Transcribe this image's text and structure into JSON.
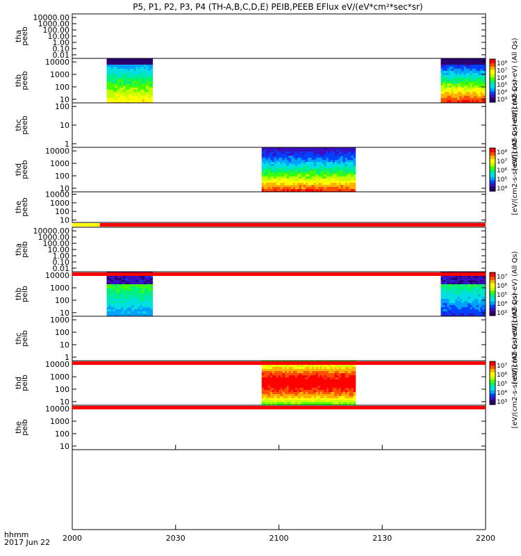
{
  "chart_data": {
    "type": "heatmap",
    "title": "P5, P1, P2, P3, P4 (TH-A,B,C,D,E) PEIB,PEEB EFlux eV/(eV*cm²*sec*sr)",
    "x_ticks": [
      "2000",
      "2030",
      "2100",
      "2130",
      "2200"
    ],
    "x_range": [
      "20:00",
      "22:00"
    ],
    "x_label": "hhmm",
    "date_label": "2017 Jun 22",
    "panels": [
      {
        "id": "tha-peeb",
        "ylabel": [
          "tha",
          "peeb"
        ],
        "yticks": [
          "10000.00",
          "1000.00",
          "100.00",
          "10.00",
          "1.00",
          "0.10",
          "0.01"
        ],
        "data": false
      },
      {
        "id": "thb-peeb",
        "ylabel": [
          "thb",
          "peeb"
        ],
        "yticks": [
          "10000",
          "1000",
          "100",
          "10"
        ],
        "data": true,
        "intervals": [
          {
            "start": "20:10",
            "end": "20:23"
          },
          {
            "start": "21:47",
            "end": "22:00"
          }
        ],
        "colorbar": {
          "ticks": [
            "10⁸",
            "10⁷",
            "10⁶",
            "10⁵",
            "10⁴",
            "10³"
          ],
          "label": "eV/(cm2-s-sr-eV) (All Qs)"
        }
      },
      {
        "id": "thc-peeb",
        "ylabel": [
          "thc",
          "peeb"
        ],
        "yticks": [
          "100",
          "10",
          "1"
        ],
        "data": false,
        "colorbar_label": "[eV/(cm2-s-sr-eV)] (All Qs)"
      },
      {
        "id": "thd-peeb",
        "ylabel": [
          "thd",
          "peeb"
        ],
        "yticks": [
          "10000",
          "1000",
          "100",
          "10"
        ],
        "data": true,
        "intervals": [
          {
            "start": "20:55",
            "end": "21:22"
          }
        ],
        "colorbar": {
          "ticks": [
            "10⁸",
            "10⁷",
            "10⁶",
            "10⁵",
            "10⁴"
          ],
          "label": "[eV/(cm2-s-sr-eV)] (All Qs)"
        }
      },
      {
        "id": "the-peeb",
        "ylabel": [
          "the",
          "peeb"
        ],
        "yticks": [
          "10000",
          "1000",
          "100",
          "10"
        ],
        "data": false
      },
      {
        "id": "tha-peib",
        "ylabel": [
          "tha",
          "peib"
        ],
        "yticks": [
          "10000.00",
          "1000.00",
          "100.00",
          "10.00",
          "1.00",
          "0.10",
          "0.01"
        ],
        "data": false
      },
      {
        "id": "thb-peib",
        "ylabel": [
          "thb",
          "peib"
        ],
        "yticks": [
          "10000",
          "1000",
          "100",
          "10"
        ],
        "data": true,
        "intervals": [
          {
            "start": "20:10",
            "end": "20:23"
          },
          {
            "start": "21:47",
            "end": "22:00"
          }
        ],
        "colorbar": {
          "ticks": [
            "10⁷",
            "10⁶",
            "10⁵",
            "10⁴",
            "10³"
          ],
          "label": "eV/(cm2-s-sr-eV) (All Qs)"
        }
      },
      {
        "id": "thc-peib",
        "ylabel": [
          "thc",
          "peib"
        ],
        "yticks": [
          "1000",
          "100",
          "10",
          "1"
        ],
        "data": false,
        "colorbar_label": "[eV/(cm2-s-sr-eV)] (All Qs)"
      },
      {
        "id": "thd-peib",
        "ylabel": [
          "thd",
          "peib"
        ],
        "yticks": [
          "10000",
          "1000",
          "100",
          "10"
        ],
        "data": true,
        "intervals": [
          {
            "start": "20:55",
            "end": "21:22"
          }
        ],
        "colorbar": {
          "ticks": [
            "10⁷",
            "10⁶",
            "10⁵",
            "10⁴",
            "10³"
          ],
          "label": "[eV/(cm2-s-sr-eV)] (All Qs)"
        }
      },
      {
        "id": "the-peib",
        "ylabel": [
          "the",
          "peib"
        ],
        "yticks": [
          "10000",
          "1000",
          "100",
          "10"
        ],
        "data": false
      }
    ],
    "flag_bars": [
      {
        "after_panel": "the-peeb",
        "segments": [
          {
            "start": "20:00",
            "end": "20:08",
            "color": "#ffff00"
          },
          {
            "start": "20:08",
            "end": "22:00",
            "color": "#ff0000"
          }
        ]
      },
      {
        "after_panel": "tha-peib",
        "segments": [
          {
            "start": "20:00",
            "end": "22:00",
            "color": "#ff0000"
          }
        ]
      },
      {
        "after_panel": "thc-peib",
        "segments": [
          {
            "start": "20:00",
            "end": "22:00",
            "color": "#ff0000"
          }
        ]
      },
      {
        "after_panel": "thd-peib",
        "segments": [
          {
            "start": "20:00",
            "end": "22:00",
            "color": "#ff0000"
          }
        ]
      }
    ],
    "colormap": [
      "#2a0070",
      "#3a10c0",
      "#0040ff",
      "#00a0ff",
      "#00e0e0",
      "#00f080",
      "#40ff00",
      "#c0ff00",
      "#ffff00",
      "#ffb000",
      "#ff5000",
      "#ff0000",
      "#d00000"
    ]
  }
}
